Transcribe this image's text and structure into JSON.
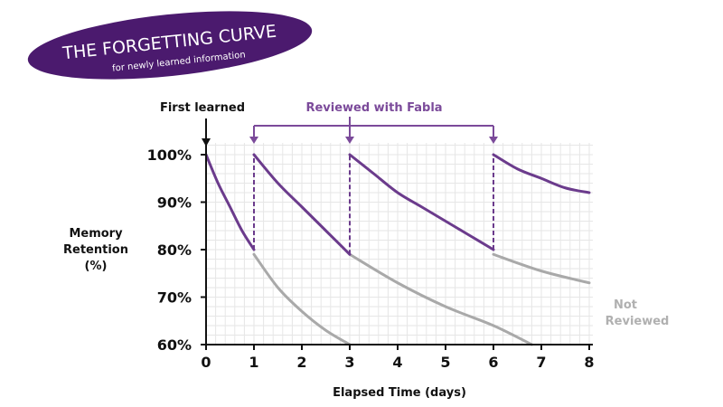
{
  "chart_data": {
    "type": "line",
    "title": "THE FORGETTING CURVE",
    "subtitle": "for newly learned information",
    "xlabel": "Elapsed Time (days)",
    "ylabel": [
      "Memory",
      "Retention",
      "(%)"
    ],
    "xlim": [
      0,
      8
    ],
    "ylim": [
      60,
      100
    ],
    "x_ticks": [
      "0",
      "1",
      "2",
      "3",
      "4",
      "5",
      "6",
      "7",
      "8"
    ],
    "y_ticks": [
      "60%",
      "70%",
      "80%",
      "90%",
      "100%"
    ],
    "grid": true,
    "annotations": {
      "first_learned": "First learned",
      "reviewed": "Reviewed with Fabla",
      "not_reviewed": [
        "Not",
        "Reviewed"
      ]
    },
    "review_days": [
      1,
      3,
      6
    ],
    "series": [
      {
        "name": "Reviewed with Fabla",
        "segments": [
          {
            "x": [
              0,
              0.25,
              0.5,
              0.75,
              1
            ],
            "y": [
              100,
              94,
              89,
              84,
              80
            ]
          },
          {
            "x": [
              1,
              1.5,
              2,
              2.5,
              3
            ],
            "y": [
              100,
              94,
              89,
              84,
              79
            ]
          },
          {
            "x": [
              3,
              3.5,
              4,
              4.5,
              5,
              5.5,
              6
            ],
            "y": [
              100,
              96,
              92,
              89,
              86,
              83,
              80
            ]
          },
          {
            "x": [
              6,
              6.5,
              7,
              7.5,
              8
            ],
            "y": [
              100,
              97,
              95,
              93,
              92
            ]
          }
        ]
      },
      {
        "name": "Not Reviewed",
        "segments": [
          {
            "x": [
              1,
              1.5,
              2,
              2.5,
              3
            ],
            "y": [
              79,
              72,
              67,
              63,
              60
            ]
          },
          {
            "x": [
              3,
              4,
              5,
              6,
              6.8
            ],
            "y": [
              79,
              73,
              68,
              64,
              60
            ]
          },
          {
            "x": [
              6,
              7,
              8
            ],
            "y": [
              79,
              75.5,
              73
            ]
          }
        ]
      }
    ],
    "colors": {
      "reviewed": "#6b3b8c",
      "not_reviewed": "#a9a9a9",
      "banner": "#4b1a6e",
      "annotation_purple": "#7b4a9a",
      "not_reviewed_label": "#b0b0b0"
    }
  }
}
